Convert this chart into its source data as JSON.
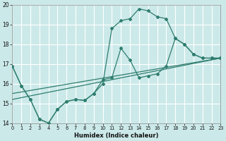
{
  "xlabel": "Humidex (Indice chaleur)",
  "xlim": [
    0,
    23
  ],
  "ylim": [
    14,
    20
  ],
  "background_color": "#cce9e9",
  "grid_color": "#b8d8d8",
  "line_color": "#2e7d6e",
  "curve_main_x": [
    0,
    1,
    2,
    3,
    4,
    5,
    6,
    7,
    8,
    9,
    10,
    11,
    12,
    13,
    14,
    15,
    16,
    17,
    18,
    19,
    20,
    21,
    22,
    23
  ],
  "curve_main_y": [
    16.9,
    15.9,
    15.2,
    14.2,
    14.0,
    14.7,
    15.1,
    15.2,
    15.15,
    15.5,
    16.0,
    18.8,
    19.2,
    19.3,
    19.8,
    19.7,
    19.4,
    19.3,
    18.3,
    18.0,
    17.5,
    17.3,
    17.3,
    17.3
  ],
  "curve_low_x": [
    0,
    1,
    2,
    3,
    4,
    5,
    6,
    7,
    8,
    9,
    10,
    11,
    12,
    13,
    14,
    15,
    16,
    17,
    18,
    19,
    20,
    21,
    22,
    23
  ],
  "curve_low_y": [
    16.9,
    15.9,
    15.2,
    14.2,
    14.0,
    14.7,
    15.1,
    15.2,
    15.15,
    15.5,
    16.2,
    16.3,
    17.8,
    17.2,
    16.3,
    16.4,
    16.5,
    16.9,
    18.3,
    18.0,
    17.5,
    17.3,
    17.3,
    17.3
  ],
  "line1_x": [
    0,
    23
  ],
  "line1_y": [
    15.5,
    17.3
  ],
  "line2_x": [
    0,
    23
  ],
  "line2_y": [
    15.2,
    17.3
  ],
  "ytick_values": [
    14,
    15,
    16,
    17,
    18,
    19,
    20
  ],
  "ytick_labels": [
    "14",
    "15",
    "16",
    "17",
    "18",
    "19",
    "20"
  ]
}
